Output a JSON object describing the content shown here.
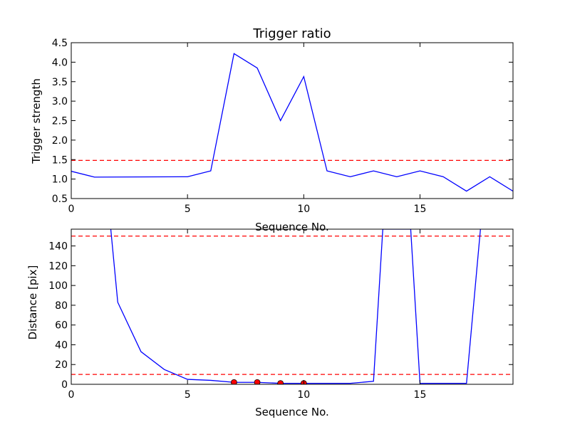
{
  "colors": {
    "series": "#0000ff",
    "reference": "#ff0000",
    "marker": "#ff0000"
  },
  "chart_data": [
    {
      "type": "line",
      "title": "Trigger ratio",
      "xlabel": "Sequence No.",
      "ylabel": "Trigger strength",
      "xlim": [
        0,
        19
      ],
      "ylim": [
        0.5,
        4.5
      ],
      "xticks": [
        0,
        5,
        10,
        15
      ],
      "xtick_labels": [
        "0",
        "5",
        "10",
        "15"
      ],
      "yticks": [
        0.5,
        1.0,
        1.5,
        2.0,
        2.5,
        3.0,
        3.5,
        4.0,
        4.5
      ],
      "ytick_labels": [
        "0.5",
        "1.0",
        "1.5",
        "2.0",
        "2.5",
        "3.0",
        "3.5",
        "4.0",
        "4.5"
      ],
      "grid": false,
      "series": [
        {
          "x": [
            0,
            1,
            5,
            6,
            7,
            8,
            9,
            10,
            11,
            12,
            13,
            14,
            15,
            16,
            17,
            18,
            19
          ],
          "y": [
            1.2,
            1.05,
            1.06,
            1.21,
            4.22,
            3.85,
            2.5,
            3.63,
            1.21,
            1.06,
            1.21,
            1.06,
            1.21,
            1.06,
            0.69,
            1.06,
            0.69
          ]
        }
      ],
      "reference_lines": [
        1.48
      ]
    },
    {
      "type": "line",
      "title": "",
      "xlabel": "Sequence No.",
      "ylabel": "Distance [pix]",
      "xlim": [
        0,
        19
      ],
      "ylim": [
        0,
        157
      ],
      "xticks": [
        0,
        5,
        10,
        15
      ],
      "xtick_labels": [
        "0",
        "5",
        "10",
        "15"
      ],
      "yticks": [
        0,
        20,
        40,
        60,
        80,
        100,
        120,
        140
      ],
      "ytick_labels": [
        "0",
        "20",
        "40",
        "60",
        "80",
        "100",
        "120",
        "140"
      ],
      "grid": false,
      "series": [
        {
          "x": [
            1.7,
            2,
            3,
            4,
            5,
            6,
            7,
            8,
            9,
            10,
            11,
            12,
            13,
            13.4,
            14.6,
            15,
            16,
            17,
            17.6
          ],
          "y": [
            157,
            83,
            33,
            15,
            5,
            4,
            2,
            2,
            1,
            1,
            1,
            1,
            3,
            157,
            157,
            1,
            1,
            1,
            157
          ]
        }
      ],
      "reference_lines": [
        150,
        10
      ],
      "markers": {
        "x": [
          7,
          8,
          9,
          10
        ],
        "y": [
          2,
          2,
          1,
          1
        ]
      }
    }
  ]
}
